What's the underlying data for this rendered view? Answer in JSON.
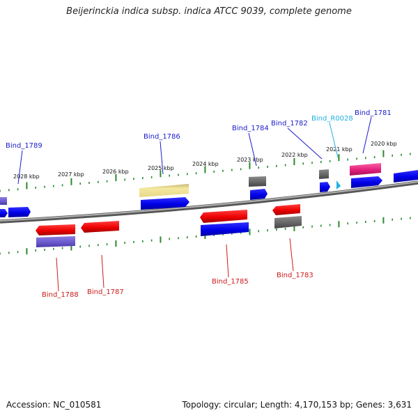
{
  "title": "Beijerinckia indica subsp. indica ATCC 9039, complete genome",
  "footer": {
    "accession": "Accession: NC_010581",
    "topology": "Topology: circular; Length: 4,170,153 bp; Genes: 3,631"
  },
  "ruler": [
    "2028 kbp",
    "2027 kbp",
    "2026 kbp",
    "2025 kbp",
    "2024 kbp",
    "2023 kbp",
    "2022 kbp",
    "2021 kbp",
    "2020 kbp"
  ],
  "genes": {
    "bind_1789": "Bind_1789",
    "bind_1786": "Bind_1786",
    "bind_1784": "Bind_1784",
    "bind_1782": "Bind_1782",
    "bind_r0028": "Bind_R0028",
    "bind_1781": "Bind_1781",
    "bind_1788": "Bind_1788",
    "bind_1787": "Bind_1787",
    "bind_1785": "Bind_1785",
    "bind_1783": "Bind_1783"
  },
  "colors": {
    "backbone": "#8a8a8a",
    "tick": "#2a8a2a",
    "cds_forward": "#0000ee",
    "cds_reverse": "#ee0000",
    "pseudo": "#6a5acd",
    "gray": "#666666",
    "hypothetical": "#f0e08c",
    "rna": "#e0207a",
    "trna": "#20b0e0",
    "label_forward": "#1a1acc",
    "label_reverse": "#cc1a1a",
    "label_rna": "#20b0e0"
  }
}
